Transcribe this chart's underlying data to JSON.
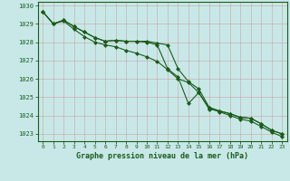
{
  "title": "Graphe pression niveau de la mer (hPa)",
  "bg_color": "#c8e8e8",
  "grid_color": "#b0d0d0",
  "line_color": "#1a5c1a",
  "xlim": [
    -0.5,
    23.5
  ],
  "ylim": [
    1022.6,
    1030.2
  ],
  "yticks": [
    1023,
    1024,
    1025,
    1026,
    1027,
    1028,
    1029,
    1030
  ],
  "xticks": [
    0,
    1,
    2,
    3,
    4,
    5,
    6,
    7,
    8,
    9,
    10,
    11,
    12,
    13,
    14,
    15,
    16,
    17,
    18,
    19,
    20,
    21,
    22,
    23
  ],
  "series": [
    [
      1029.65,
      1029.0,
      1029.2,
      1028.85,
      1028.55,
      1028.25,
      1028.05,
      1028.1,
      1028.05,
      1028.05,
      1028.05,
      1027.95,
      1027.85,
      1026.55,
      1025.85,
      1025.45,
      1024.45,
      1024.25,
      1024.1,
      1023.9,
      1023.85,
      1023.55,
      1023.2,
      1023.0
    ],
    [
      1029.65,
      1029.0,
      1029.2,
      1028.85,
      1028.55,
      1028.25,
      1028.05,
      1028.1,
      1028.05,
      1028.05,
      1028.0,
      1027.85,
      1026.55,
      1026.1,
      1024.65,
      1025.25,
      1024.35,
      1024.25,
      1024.1,
      1023.9,
      1023.85,
      1023.55,
      1023.2,
      1023.0
    ],
    [
      1029.65,
      1029.0,
      1029.15,
      1028.7,
      1028.3,
      1028.0,
      1027.85,
      1027.75,
      1027.55,
      1027.4,
      1027.2,
      1026.95,
      1026.5,
      1026.0,
      1025.8,
      1025.25,
      1024.4,
      1024.2,
      1024.0,
      1023.8,
      1023.7,
      1023.4,
      1023.1,
      1022.85
    ]
  ]
}
